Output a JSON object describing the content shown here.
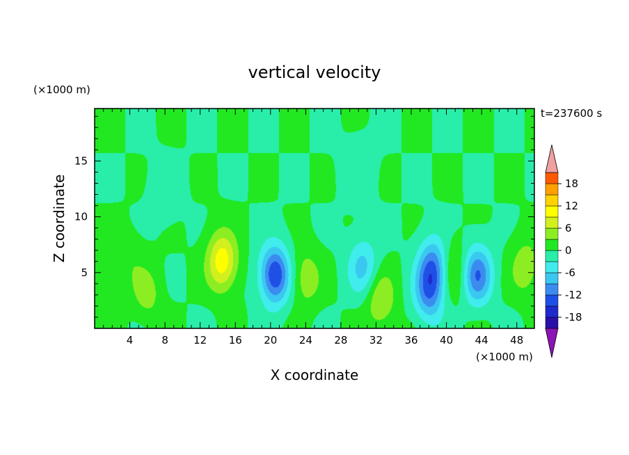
{
  "chart_data": {
    "type": "heatmap",
    "title": "vertical velocity",
    "xlabel": "X coordinate",
    "ylabel": "Z coordinate",
    "x_unit": "(×1000 m)",
    "y_unit": "(×1000 m)",
    "time_label": "t=237600 s",
    "xlim": [
      0,
      50
    ],
    "ylim": [
      0,
      19.7
    ],
    "xticks": [
      4,
      8,
      12,
      16,
      20,
      24,
      28,
      32,
      36,
      40,
      44,
      48
    ],
    "yticks": [
      5,
      10,
      15
    ],
    "colorbar": {
      "ticks": [
        18,
        12,
        6,
        0,
        -6,
        -12,
        -18
      ],
      "levels": [
        -21,
        -18,
        -15,
        -12,
        -9,
        -6,
        -3,
        0,
        3,
        6,
        9,
        12,
        15,
        18,
        21
      ],
      "colors": [
        "#6a1ea8",
        "#2a10a8",
        "#1e2acc",
        "#1e50e6",
        "#3c8cf0",
        "#3ac8f0",
        "#40ecec",
        "#28eeaa",
        "#22e822",
        "#8cee22",
        "#d2f01e",
        "#ffff00",
        "#ffd200",
        "#ffa000",
        "#ff5a00",
        "#ff1e1e",
        "#f0a0a0"
      ],
      "under_color": "#8c14b4",
      "over_color": "#f0a0a0"
    },
    "features": [
      {
        "x": 1,
        "z": 3,
        "w": 3
      },
      {
        "x": 6,
        "z": 3,
        "w": 4
      },
      {
        "x": 4,
        "z": 6,
        "w": 2
      },
      {
        "x": 14.5,
        "z": 6,
        "w": 11
      },
      {
        "x": 20.5,
        "z": 4.8,
        "w": -15
      },
      {
        "x": 24,
        "z": 4.5,
        "w": 5
      },
      {
        "x": 30.5,
        "z": 5.5,
        "w": -7
      },
      {
        "x": 32.5,
        "z": 2.5,
        "w": 6
      },
      {
        "x": 38.5,
        "z": 5.5,
        "w": -11
      },
      {
        "x": 38,
        "z": 3,
        "w": -9
      },
      {
        "x": 40.8,
        "z": 5.2,
        "w": 5
      },
      {
        "x": 43.5,
        "z": 4.8,
        "w": -12
      },
      {
        "x": 49,
        "z": 5.5,
        "w": 5
      },
      {
        "x": 30,
        "z": 14,
        "w": -2
      },
      {
        "x": 8,
        "z": 12,
        "w": -2
      }
    ]
  }
}
